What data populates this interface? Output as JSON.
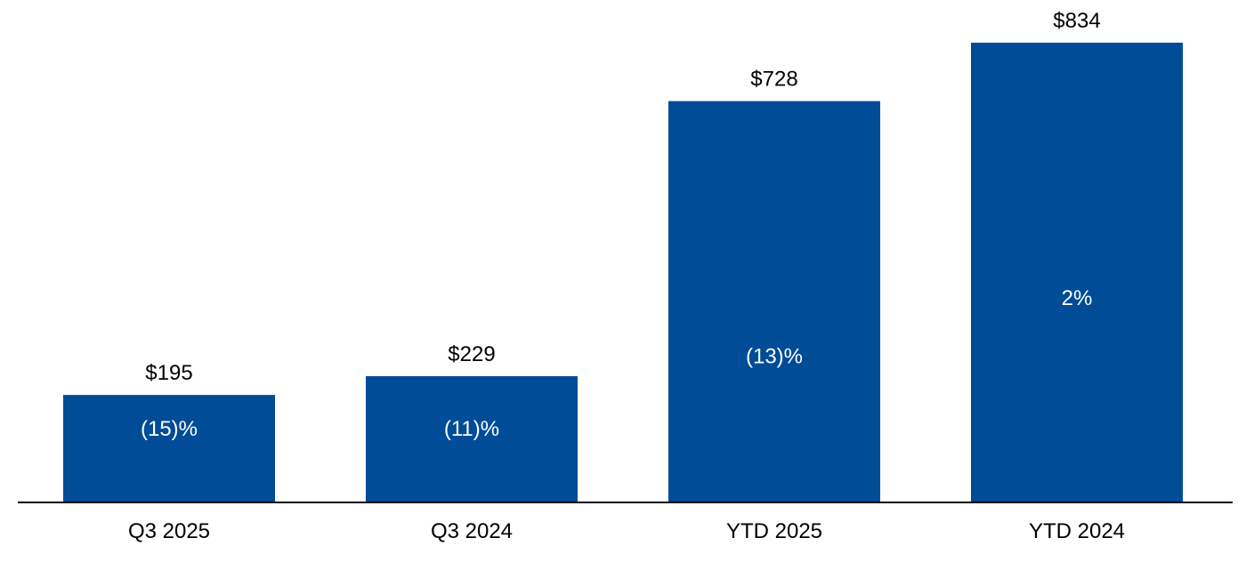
{
  "chart_data": {
    "type": "bar",
    "categories": [
      "Q3 2025",
      "Q3 2024",
      "YTD 2025",
      "YTD 2024"
    ],
    "values": [
      195,
      229,
      728,
      834
    ],
    "value_labels": [
      "$195",
      "$229",
      "$728",
      "$834"
    ],
    "change_labels": [
      "(15)%",
      "(11)%",
      "(13)%",
      "2%"
    ],
    "title": "",
    "xlabel": "",
    "ylabel": "",
    "ylim": [
      0,
      834
    ],
    "grid": false,
    "legend": "none",
    "colors": {
      "bar": "#004c97",
      "axis": "#000000"
    }
  }
}
